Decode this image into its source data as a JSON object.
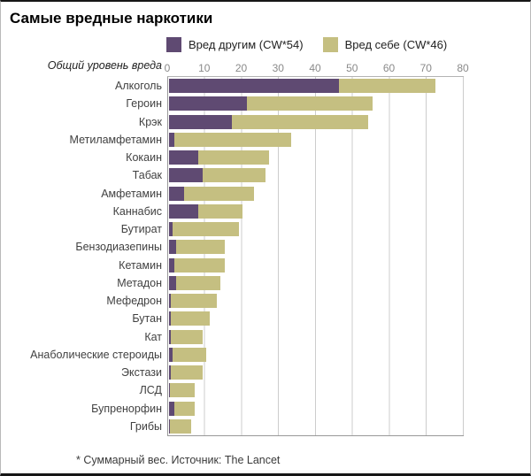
{
  "title": "Самые вредные наркотики",
  "axis_title": "Общий уровень вреда",
  "footnote": "* Суммарный вес. Источник: The Lancet",
  "chart_data": {
    "type": "bar",
    "orientation": "horizontal",
    "stacked": true,
    "title": "Самые вредные наркотики",
    "xlabel": "Общий уровень вреда",
    "xlim": [
      0,
      80
    ],
    "xticks": [
      0,
      10,
      20,
      30,
      40,
      50,
      60,
      70,
      80
    ],
    "grid": true,
    "legend_position": "top",
    "categories": [
      "Алкоголь",
      "Героин",
      "Крэк",
      "Метиламфетамин",
      "Кокаин",
      "Табак",
      "Амфетамин",
      "Каннабис",
      "Бутират",
      "Бензодиазепины",
      "Кетамин",
      "Метадон",
      "Мефедрон",
      "Бутан",
      "Кат",
      "Анаболические стероиды",
      "Экстази",
      "ЛСД",
      "Бупренорфин",
      "Грибы"
    ],
    "series": [
      {
        "name": "Вред другим (CW*54)",
        "color": "#5f4a72",
        "values": [
          46,
          21,
          17,
          1.5,
          8,
          9,
          4,
          8,
          1,
          2,
          1.5,
          2,
          0.5,
          0.5,
          0.5,
          1,
          0.5,
          0.2,
          1.5,
          0.2
        ]
      },
      {
        "name": "Вред себе (CW*46)",
        "color": "#c5bf81",
        "values": [
          26,
          34,
          37,
          31.5,
          19,
          17,
          19,
          12,
          18,
          13,
          13.5,
          12,
          12.5,
          10.5,
          8.5,
          9,
          8.5,
          6.8,
          5.5,
          5.8
        ]
      }
    ],
    "totals": [
      72,
      55,
      54,
      33,
      27,
      26,
      23,
      20,
      19,
      15,
      15,
      14,
      13,
      11,
      9,
      10,
      9,
      7,
      7,
      6
    ],
    "grid_color": "#cccccc",
    "axis_text_color": "#8a8a8a"
  }
}
